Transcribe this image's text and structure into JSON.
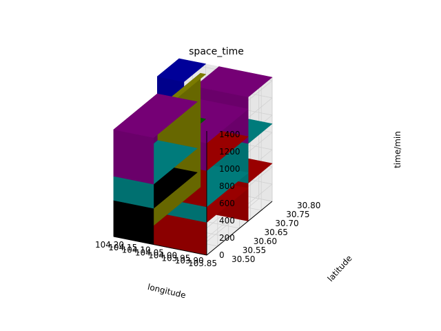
{
  "chart_data": {
    "type": "3d-bar",
    "title": "space_time",
    "xlabel": "longitude",
    "ylabel": "latitude",
    "zlabel": "time/min",
    "xlim": [
      103.85,
      104.2
    ],
    "ylim": [
      30.5,
      30.8
    ],
    "zlim": [
      0,
      1440
    ],
    "x_ticks": [
      "103.85",
      "103.90",
      "103.95",
      "104.00",
      "104.05",
      "104.10",
      "104.15",
      "104.20"
    ],
    "y_ticks": [
      "30.50",
      "30.55",
      "30.60",
      "30.65",
      "30.70",
      "30.75",
      "30.80"
    ],
    "z_ticks": [
      "0",
      "200",
      "400",
      "600",
      "800",
      "1000",
      "1200",
      "1400"
    ],
    "grid": true,
    "blocks": [
      {
        "x0": 103.85,
        "x1": 104.05,
        "y0": 30.69,
        "y1": 30.8,
        "z0": 0,
        "z1": 440,
        "color": "#8b0000"
      },
      {
        "x0": 103.85,
        "x1": 104.05,
        "y0": 30.69,
        "y1": 30.8,
        "z0": 440,
        "z1": 900,
        "color": "#007070"
      },
      {
        "x0": 103.85,
        "x1": 104.05,
        "y0": 30.69,
        "y1": 30.8,
        "z0": 900,
        "z1": 1440,
        "color": "#6a006a"
      },
      {
        "x0": 104.1,
        "x1": 104.2,
        "y0": 30.7,
        "y1": 30.8,
        "z0": 300,
        "z1": 800,
        "color": "#004d00"
      },
      {
        "x0": 104.1,
        "x1": 104.2,
        "y0": 30.7,
        "y1": 30.8,
        "z0": 800,
        "z1": 1440,
        "color": "#00008b"
      },
      {
        "x0": 104.1,
        "x1": 104.12,
        "y0": 30.55,
        "y1": 30.8,
        "z0": 0,
        "z1": 1320,
        "color": "#707000"
      },
      {
        "x0": 104.05,
        "x1": 104.2,
        "y0": 30.5,
        "y1": 30.7,
        "z0": 0,
        "z1": 420,
        "color": "#000000"
      },
      {
        "x0": 103.85,
        "x1": 104.05,
        "y0": 30.5,
        "y1": 30.69,
        "z0": 0,
        "z1": 380,
        "color": "#8b0000"
      },
      {
        "x0": 104.05,
        "x1": 104.2,
        "y0": 30.5,
        "y1": 30.7,
        "z0": 420,
        "z1": 700,
        "color": "#007070"
      },
      {
        "x0": 103.85,
        "x1": 104.05,
        "y0": 30.5,
        "y1": 30.69,
        "z0": 380,
        "z1": 560,
        "color": "#007070"
      },
      {
        "x0": 103.85,
        "x1": 104.05,
        "y0": 30.5,
        "y1": 30.69,
        "z0": 560,
        "z1": 980,
        "color": "#8b0000"
      },
      {
        "x0": 104.05,
        "x1": 104.2,
        "y0": 30.5,
        "y1": 30.7,
        "z0": 700,
        "z1": 1240,
        "color": "#6a006a"
      },
      {
        "x0": 103.85,
        "x1": 104.05,
        "y0": 30.5,
        "y1": 30.69,
        "z0": 980,
        "z1": 1300,
        "color": "#6a006a"
      }
    ]
  }
}
